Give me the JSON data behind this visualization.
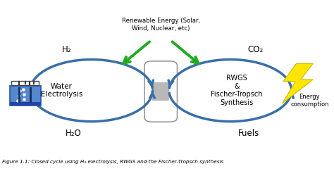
{
  "caption": "Figure 1.1: Closed cycle using H₂ electrolysis, RWGS and the Fischer-Tropsch synthesis",
  "bg_color": "#ffffff",
  "blue": "#3a6fa8",
  "green": "#22aa22",
  "text_renewable": "Renewable Energy (Solar,\nWind, Nuclear, etc)",
  "text_h2": "H₂",
  "text_co2": "CO₂",
  "text_h2o": "H₂O",
  "text_fuels": "Fuels",
  "text_electrolysis": "Water\nElectrolysis",
  "text_rwgs": "RWGS\n&\nFischer-Tropsch\nSynthesis",
  "text_energy": "Energy\nconsumption",
  "figsize": [
    4.74,
    2.43
  ],
  "dpi": 100
}
